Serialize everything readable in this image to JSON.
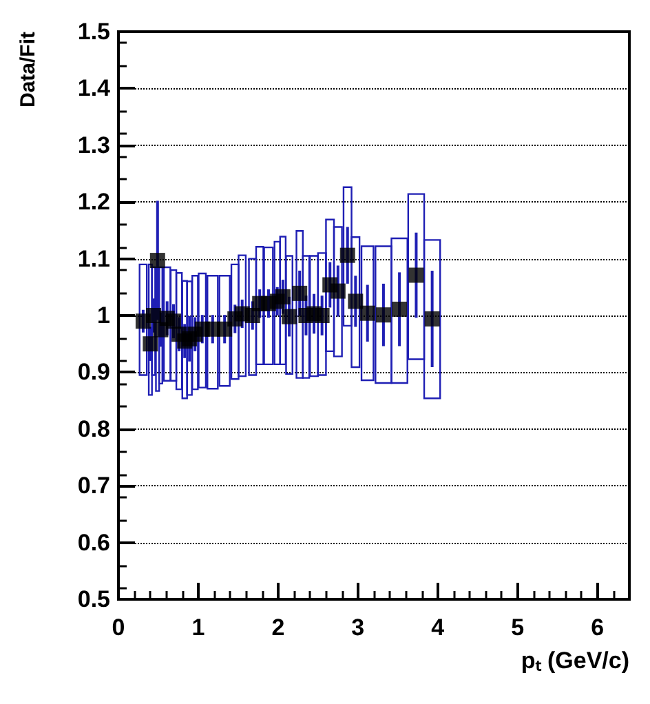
{
  "chart_data": {
    "type": "scatter",
    "xlabel": "pₜ (GeV/c)",
    "ylabel": "Data/Fit",
    "xlim": [
      0,
      6.4
    ],
    "xticks": [
      0,
      1,
      2,
      3,
      4,
      5,
      6
    ],
    "ylim": [
      0.5,
      1.5
    ],
    "yticks": [
      0.5,
      0.6,
      0.7,
      0.8,
      0.9,
      1,
      1.1,
      1.2,
      1.3,
      1.4,
      1.5
    ],
    "grid": "y",
    "series": [
      {
        "type": "bar",
        "color": "#1f1fb4",
        "x": [
          0.31,
          0.4,
          0.44,
          0.49,
          0.53,
          0.61,
          0.69,
          0.76,
          0.83,
          0.89,
          0.96,
          1.05,
          1.18,
          1.33,
          1.46,
          1.55,
          1.68,
          1.77,
          1.88,
          1.99,
          2.06,
          2.14,
          2.27,
          2.35,
          2.45,
          2.55,
          2.65,
          2.75,
          2.87,
          2.97,
          3.12,
          3.32,
          3.52,
          3.73,
          3.93
        ],
        "base": [
          0.895,
          0.86,
          0.895,
          0.867,
          0.88,
          0.885,
          0.885,
          0.87,
          0.854,
          0.86,
          0.87,
          0.873,
          0.871,
          0.876,
          0.888,
          0.893,
          0.895,
          0.914,
          0.914,
          0.914,
          0.914,
          0.897,
          0.89,
          0.89,
          0.893,
          0.895,
          0.937,
          0.928,
          0.982,
          0.909,
          0.886,
          0.881,
          0.881,
          0.923,
          0.854
        ],
        "values": [
          0.195,
          0.23,
          0.19,
          0.216,
          0.205,
          0.2,
          0.195,
          0.205,
          0.207,
          0.2,
          0.2,
          0.201,
          0.199,
          0.194,
          0.202,
          0.213,
          0.205,
          0.207,
          0.206,
          0.216,
          0.225,
          0.208,
          0.259,
          0.215,
          0.212,
          0.215,
          0.232,
          0.228,
          0.244,
          0.229,
          0.236,
          0.241,
          0.255,
          0.291,
          0.279
        ]
      },
      {
        "color": "#000000",
        "marker": "square",
        "x": [
          0.31,
          0.4,
          0.44,
          0.49,
          0.53,
          0.61,
          0.69,
          0.76,
          0.83,
          0.89,
          0.96,
          1.05,
          1.18,
          1.33,
          1.46,
          1.55,
          1.68,
          1.77,
          1.88,
          1.99,
          2.06,
          2.14,
          2.27,
          2.35,
          2.45,
          2.55,
          2.65,
          2.75,
          2.87,
          2.97,
          3.12,
          3.32,
          3.52,
          3.73,
          3.93
        ],
        "values": [
          0.99,
          0.95,
          1.0,
          1.097,
          0.975,
          0.995,
          0.99,
          0.967,
          0.955,
          0.959,
          0.967,
          0.976,
          0.976,
          0.976,
          0.994,
          1.003,
          1.0,
          1.021,
          1.021,
          1.025,
          1.033,
          0.998,
          1.039,
          1.0,
          1.003,
          1.0,
          1.054,
          1.043,
          1.106,
          1.025,
          1.004,
          1.001,
          1.011,
          1.071,
          0.994
        ],
        "errors": [
          0.02,
          0.03,
          0.03,
          0.105,
          0.03,
          0.03,
          0.03,
          0.03,
          0.03,
          0.04,
          0.03,
          0.025,
          0.025,
          0.025,
          0.025,
          0.025,
          0.025,
          0.025,
          0.025,
          0.025,
          0.03,
          0.035,
          0.04,
          0.035,
          0.035,
          0.035,
          0.04,
          0.045,
          0.05,
          0.045,
          0.05,
          0.055,
          0.065,
          0.075,
          0.085
        ]
      }
    ]
  }
}
